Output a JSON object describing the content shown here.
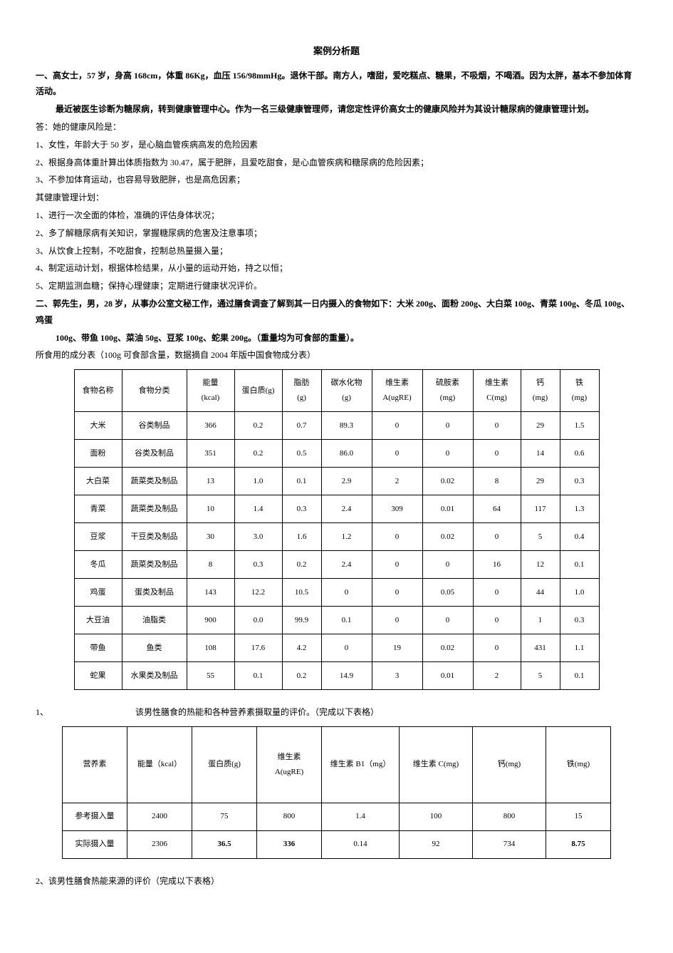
{
  "title": "案例分析题",
  "q1": {
    "prompt": "一、高女士，57 岁，身高 168cm，体重 86Kg，血压 156/98mmHg。退休干部。南方人，嗜甜，爱吃糕点、糖果，不吸烟，不喝酒。因为太胖，基本不参加体育活动。",
    "prompt2": "最近被医生诊断为糖尿病，转到健康管理中心。作为一名三级健康管理师，请您定性评价高女士的健康风险并为其设计糖尿病的健康管理计划。",
    "a0": "答：她的健康风险是：",
    "a1": "1、女性，年龄大于 50 岁，是心脑血管疾病高发的危险因素",
    "a2": "2、根据身高体重計算出体质指数为 30.47，属于肥胖，且爱吃甜食，是心血管疾病和糖尿病的危险因素；",
    "a3": "3、不参加体育运动，也容易导致肥胖，也是高危因素；",
    "plan0": "其健康管理计划：",
    "p1": "1、进行一次全面的体检，准确的评估身体状况；",
    "p2": "2、多了解糖尿病有关知识，掌握糖尿病的危害及注意事项；",
    "p3": "3、从饮食上控制，不吃甜食，控制总热量摄入量；",
    "p4": "4、制定运动计划，根据体检结果，从小量的运动开始，持之以恒；",
    "p5": "5、定期监测血糖；保持心理健康；定期进行健康状况评价。"
  },
  "q2": {
    "prompt": "二、郭先生，男，28 岁，从事办公室文秘工作，通过膳食调查了解到其一日内摄入的食物如下：大米 200g、面粉 200g、大白菜 100g、青菜 100g、冬瓜 100g、鸡蛋",
    "prompt2": "100g、带鱼 100g、菜油 50g、豆浆 100g、蛇果 200g。（重量均为可食部的重量）。",
    "tabline": "所食用的成分表（100g 可食部含量，数据摘自 2004 年版中国食物成分表）"
  },
  "t1": {
    "cols": [
      "食物名称",
      "食物分类",
      "能量\n(kcal)",
      "蛋白质(g)",
      "脂肪\n(g)",
      "碳水化物\n(g)",
      "维生素\nA(ugRE)",
      "硫胺素\n(mg)",
      "维生素\nC(mg)",
      "钙\n(mg)",
      "铁\n(mg)"
    ],
    "widths": [
      58,
      82,
      58,
      58,
      46,
      62,
      62,
      62,
      58,
      46,
      46
    ],
    "rows": [
      [
        "大米",
        "谷类制品",
        "366",
        "0.2",
        "0.7",
        "89.3",
        "0",
        "0",
        "0",
        "29",
        "1.5"
      ],
      [
        "面粉",
        "谷类及制品",
        "351",
        "0.2",
        "0.5",
        "86.0",
        "0",
        "0",
        "0",
        "14",
        "0.6"
      ],
      [
        "大白菜",
        "蔬菜类及制品",
        "13",
        "1.0",
        "0.1",
        "2.9",
        "2",
        "0.02",
        "8",
        "29",
        "0.3"
      ],
      [
        "青菜",
        "蔬菜类及制品",
        "10",
        "1.4",
        "0.3",
        "2.4",
        "309",
        "0.01",
        "64",
        "117",
        "1.3"
      ],
      [
        "豆浆",
        "干豆类及制品",
        "30",
        "3.0",
        "1.6",
        "1.2",
        "0",
        "0.02",
        "0",
        "5",
        "0.4"
      ],
      [
        "冬瓜",
        "蔬菜类及制品",
        "8",
        "0.3",
        "0.2",
        "2.4",
        "0",
        "0",
        "16",
        "12",
        "0.1"
      ],
      [
        "鸡蛋",
        "蛋类及制品",
        "143",
        "12.2",
        "10.5",
        "0",
        "0",
        "0.05",
        "0",
        "44",
        "1.0"
      ],
      [
        "大豆油",
        "油脂类",
        "900",
        "0.0",
        "99.9",
        "0.1",
        "0",
        "0",
        "0",
        "1",
        "0.3"
      ],
      [
        "带鱼",
        "鱼类",
        "108",
        "17.6",
        "4.2",
        "0",
        "19",
        "0.02",
        "0",
        "431",
        "1.1"
      ],
      [
        "蛇果",
        "水果类及制品",
        "55",
        "0.1",
        "0.2",
        "14.9",
        "3",
        "0.01",
        "2",
        "5",
        "0.1"
      ]
    ]
  },
  "sub1": {
    "num": "1、",
    "text": "该男性膳食的热能和各种营养素摄取量的评价。（完成以下表格）"
  },
  "t2": {
    "cols": [
      "营养素",
      "能量（kcal）",
      "蛋白质(g)",
      "维生素\nA(ugRE)",
      "维生素 B1（mg）",
      "维生素 C(mg)",
      "钙(mg)",
      "铁(mg)"
    ],
    "widths": [
      82,
      82,
      82,
      82,
      100,
      94,
      94,
      82
    ],
    "rows": [
      [
        "参考摄入量",
        "2400",
        "75",
        "800",
        "1.4",
        "100",
        "800",
        "15"
      ],
      [
        "实际摄入量",
        "2306",
        "36.5",
        "336",
        "0.14",
        "92",
        "734",
        "8.75"
      ]
    ],
    "bold": {
      "1": [
        2,
        3,
        7
      ]
    }
  },
  "sub2": "2、该男性膳食热能来源的评价（完成以下表格）"
}
